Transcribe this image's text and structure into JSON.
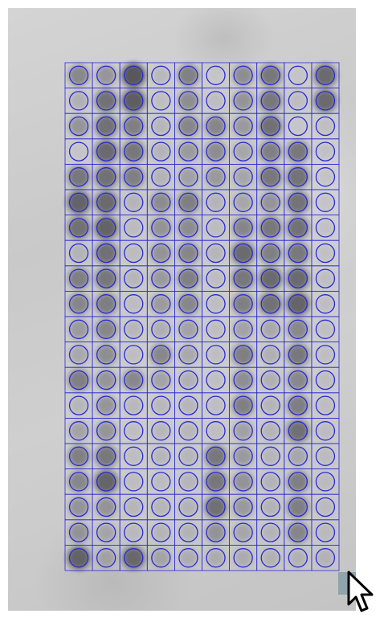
{
  "array": {
    "rows": 20,
    "cols": 10,
    "grid_color": "#2a2ad0",
    "spot_color": "#1a1a1a",
    "intensity": [
      [
        0.55,
        0.45,
        0.95,
        0.15,
        0.6,
        0.05,
        0.5,
        0.7,
        0.05,
        0.8
      ],
      [
        0.25,
        0.75,
        0.9,
        0.1,
        0.5,
        0.1,
        0.45,
        0.7,
        0.1,
        0.8
      ],
      [
        0.45,
        0.75,
        0.6,
        0.15,
        0.55,
        0.55,
        0.4,
        0.75,
        0.05,
        0.1
      ],
      [
        0.05,
        0.8,
        0.7,
        0.2,
        0.4,
        0.5,
        0.3,
        0.6,
        0.7,
        0.1
      ],
      [
        0.7,
        0.75,
        0.6,
        0.2,
        0.35,
        0.4,
        0.3,
        0.7,
        0.75,
        0.1
      ],
      [
        0.85,
        0.8,
        0.15,
        0.5,
        0.6,
        0.15,
        0.3,
        0.45,
        0.75,
        0.1
      ],
      [
        0.75,
        0.85,
        0.1,
        0.45,
        0.5,
        0.1,
        0.55,
        0.7,
        0.75,
        0.1
      ],
      [
        0.2,
        0.75,
        0.1,
        0.45,
        0.55,
        0.15,
        0.8,
        0.6,
        0.7,
        0.1
      ],
      [
        0.6,
        0.7,
        0.15,
        0.4,
        0.6,
        0.1,
        0.7,
        0.8,
        0.8,
        0.1
      ],
      [
        0.55,
        0.65,
        0.1,
        0.4,
        0.55,
        0.1,
        0.6,
        0.75,
        0.85,
        0.1
      ],
      [
        0.4,
        0.55,
        0.15,
        0.25,
        0.35,
        0.1,
        0.35,
        0.3,
        0.55,
        0.1
      ],
      [
        0.3,
        0.5,
        0.1,
        0.55,
        0.3,
        0.1,
        0.65,
        0.25,
        0.7,
        0.1
      ],
      [
        0.65,
        0.45,
        0.55,
        0.35,
        0.25,
        0.1,
        0.5,
        0.25,
        0.55,
        0.1
      ],
      [
        0.2,
        0.45,
        0.15,
        0.15,
        0.2,
        0.1,
        0.6,
        0.2,
        0.65,
        0.1
      ],
      [
        0.35,
        0.45,
        0.1,
        0.15,
        0.15,
        0.1,
        0.35,
        0.2,
        0.75,
        0.1
      ],
      [
        0.6,
        0.7,
        0.1,
        0.15,
        0.15,
        0.7,
        0.4,
        0.15,
        0.3,
        0.1
      ],
      [
        0.55,
        0.85,
        0.1,
        0.1,
        0.15,
        0.7,
        0.45,
        0.2,
        0.6,
        0.1
      ],
      [
        0.45,
        0.45,
        0.15,
        0.15,
        0.2,
        0.75,
        0.4,
        0.2,
        0.6,
        0.1
      ],
      [
        0.45,
        0.3,
        0.1,
        0.15,
        0.2,
        0.45,
        0.3,
        0.15,
        0.55,
        0.1
      ],
      [
        0.85,
        0.3,
        0.8,
        0.3,
        0.25,
        0.25,
        0.25,
        0.2,
        0.2,
        0.15
      ]
    ]
  }
}
